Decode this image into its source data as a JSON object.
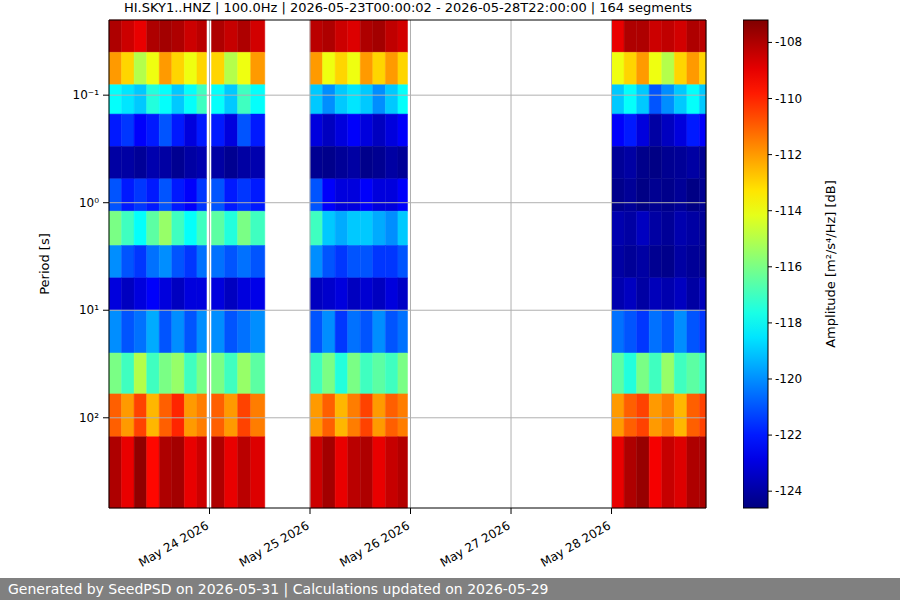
{
  "chart_data": {
    "type": "heatmap",
    "title": "HI.SKY1..HNZ | 100.0Hz | 2026-05-23T00:00:02 - 2026-05-28T22:00:00 | 164 segments",
    "y_label": "Period [s]",
    "log": "y",
    "grid": true,
    "x_start": [
      23,
      23.125,
      23.25,
      23.375,
      23.5,
      23.625,
      23.75,
      23.875,
      24.02,
      24.15,
      24.28,
      24.41,
      25,
      25.125,
      25.25,
      25.375,
      25.5,
      25.625,
      25.75,
      25.875,
      28,
      28.125,
      28.25,
      28.375,
      28.5,
      28.625,
      28.75,
      28.875
    ],
    "x_end": [
      23.125,
      23.25,
      23.375,
      23.5,
      23.625,
      23.75,
      23.875,
      23.97,
      24.15,
      24.28,
      24.41,
      24.55,
      25.125,
      25.25,
      25.375,
      25.5,
      25.625,
      25.75,
      25.875,
      25.97,
      28.125,
      28.25,
      28.375,
      28.5,
      28.625,
      28.75,
      28.875,
      28.94
    ],
    "y_bins": [
      0.02,
      0.04,
      0.08,
      0.15,
      0.3,
      0.6,
      1.2,
      2.5,
      5,
      10,
      25,
      60,
      150,
      690
    ],
    "values": [
      [
        -108,
        -108.5,
        -109,
        -108,
        -107.8,
        -108,
        -108.5,
        -108.2,
        -108,
        -108.4,
        -108,
        -108.6,
        -108.2,
        -108,
        -108.5,
        -108.8,
        -108,
        -107.8,
        -108.3,
        -108.6,
        -109,
        -108,
        -108,
        -108.5,
        -108.3,
        -108.6,
        -108,
        -108.2
      ],
      [
        -112,
        -113,
        -115,
        -114,
        -112,
        -113,
        -114,
        -113,
        -113,
        -115,
        -114,
        -112,
        -112,
        -114,
        -113,
        -114,
        -112,
        -113,
        -112,
        -113,
        -114,
        -113,
        -112,
        -114,
        -115,
        -113,
        -112,
        -113
      ],
      [
        -118,
        -118.5,
        -119,
        -117.5,
        -118,
        -119,
        -118,
        -117,
        -118,
        -119,
        -117,
        -118,
        -119,
        -120,
        -119,
        -118.5,
        -119,
        -120,
        -119,
        -118,
        -119,
        -118,
        -119,
        -121,
        -120,
        -119,
        -118,
        -119
      ],
      [
        -122,
        -121.5,
        -122.5,
        -122,
        -121,
        -122,
        -123,
        -122,
        -122,
        -123,
        -121,
        -122,
        -123,
        -123.5,
        -123,
        -122.5,
        -123,
        -123.5,
        -123,
        -122.5,
        -122.5,
        -122,
        -123,
        -124,
        -123.5,
        -123,
        -122,
        -122.5
      ],
      [
        -124,
        -124,
        -124.2,
        -123.8,
        -124,
        -124.3,
        -124,
        -123.8,
        -124,
        -124.3,
        -124,
        -123.8,
        -124.3,
        -124.4,
        -124.2,
        -124,
        -124.4,
        -124.3,
        -124,
        -124.2,
        -124.2,
        -124,
        -124.4,
        -124.5,
        -124.3,
        -124.2,
        -124,
        -124.3
      ],
      [
        -121,
        -122,
        -121.5,
        -122,
        -121,
        -122,
        -122.5,
        -121.5,
        -121,
        -122,
        -121.5,
        -122,
        -121,
        -122.5,
        -123,
        -123,
        -122.5,
        -123,
        -123,
        -122.5,
        -124.4,
        -124.2,
        -124.5,
        -124.3,
        -124.4,
        -124.2,
        -124.5,
        -124.3
      ],
      [
        -116,
        -117,
        -118,
        -116.5,
        -115.5,
        -117,
        -118,
        -117,
        -116.5,
        -117.5,
        -116,
        -117,
        -117,
        -119,
        -119.5,
        -119,
        -119,
        -119.5,
        -120,
        -119,
        -123.8,
        -124,
        -123.5,
        -124,
        -124.2,
        -123.8,
        -124,
        -124.2
      ],
      [
        -120,
        -121,
        -121.5,
        -120.5,
        -120,
        -121,
        -121.5,
        -120.5,
        -120.5,
        -121,
        -120.5,
        -121,
        -120,
        -121,
        -121.5,
        -121,
        -121,
        -121.5,
        -121.5,
        -121,
        -124,
        -124.2,
        -124,
        -124.3,
        -124.4,
        -124,
        -124.2,
        -124.3
      ],
      [
        -123,
        -123.5,
        -123,
        -122.5,
        -123,
        -123.5,
        -123,
        -123,
        -123,
        -123.5,
        -123,
        -122.8,
        -123.5,
        -123.3,
        -123,
        -123.5,
        -123.2,
        -123.5,
        -123,
        -123.4,
        -123.8,
        -123.5,
        -124,
        -123.6,
        -123.8,
        -123.5,
        -124,
        -123.6
      ],
      [
        -120,
        -121,
        -120.5,
        -119.5,
        -121,
        -120,
        -121,
        -120,
        -120,
        -121,
        -120.5,
        -120,
        -121,
        -120,
        -121.5,
        -120.5,
        -121,
        -120,
        -121,
        -120.5,
        -120.5,
        -121,
        -121.5,
        -120.5,
        -121,
        -120,
        -121,
        -121.5
      ],
      [
        -116,
        -117,
        -115,
        -117,
        -116,
        -115.5,
        -117,
        -116,
        -116,
        -117,
        -115.5,
        -116.5,
        -117,
        -116,
        -117.5,
        -116,
        -117,
        -116.5,
        -117,
        -116,
        -116.5,
        -117.5,
        -116,
        -117,
        -115.5,
        -117,
        -116.5,
        -117
      ],
      [
        -111,
        -112,
        -110.5,
        -112.5,
        -111,
        -110,
        -112,
        -111.5,
        -111,
        -112,
        -110.5,
        -111.5,
        -112,
        -111,
        -112.5,
        -111.5,
        -110.5,
        -112,
        -111,
        -111.5,
        -112,
        -111,
        -110.5,
        -112,
        -111.5,
        -112.5,
        -111,
        -110.5
      ],
      [
        -108,
        -109,
        -107.5,
        -109.5,
        -108,
        -107.8,
        -109,
        -108.5,
        -108,
        -109,
        -108.2,
        -108.8,
        -108.5,
        -107.8,
        -109,
        -108.2,
        -108,
        -109,
        -108.4,
        -108.1,
        -109,
        -108,
        -107.6,
        -109.2,
        -108.4,
        -108.8,
        -108,
        -107.9
      ]
    ],
    "xlim": [
      23,
      28.94
    ],
    "xticks": [
      {
        "value": 24,
        "label": "May 24 2026"
      },
      {
        "value": 25,
        "label": "May 25 2026"
      },
      {
        "value": 26,
        "label": "May 26 2026"
      },
      {
        "value": 27,
        "label": "May 27 2026"
      },
      {
        "value": 28,
        "label": "May 28 2026"
      }
    ],
    "ylim": [
      0.02,
      690
    ],
    "yticks": [
      {
        "value": 0.1,
        "label": "10⁻¹"
      },
      {
        "value": 1,
        "label": "10⁰"
      },
      {
        "value": 10,
        "label": "10¹"
      },
      {
        "value": 100,
        "label": "10²"
      }
    ],
    "colorbar_label": "Amplitude [m²/s⁴/Hz] [dB]",
    "colorbar_range": [
      -124.6,
      -107.2
    ],
    "colorbar_ticks": [
      -124,
      -122,
      -120,
      -118,
      -116,
      -114,
      -112,
      -110,
      -108
    ],
    "footer": "Generated by SeedPSD on 2026-05-31 | Calculations updated on 2026-05-29"
  }
}
